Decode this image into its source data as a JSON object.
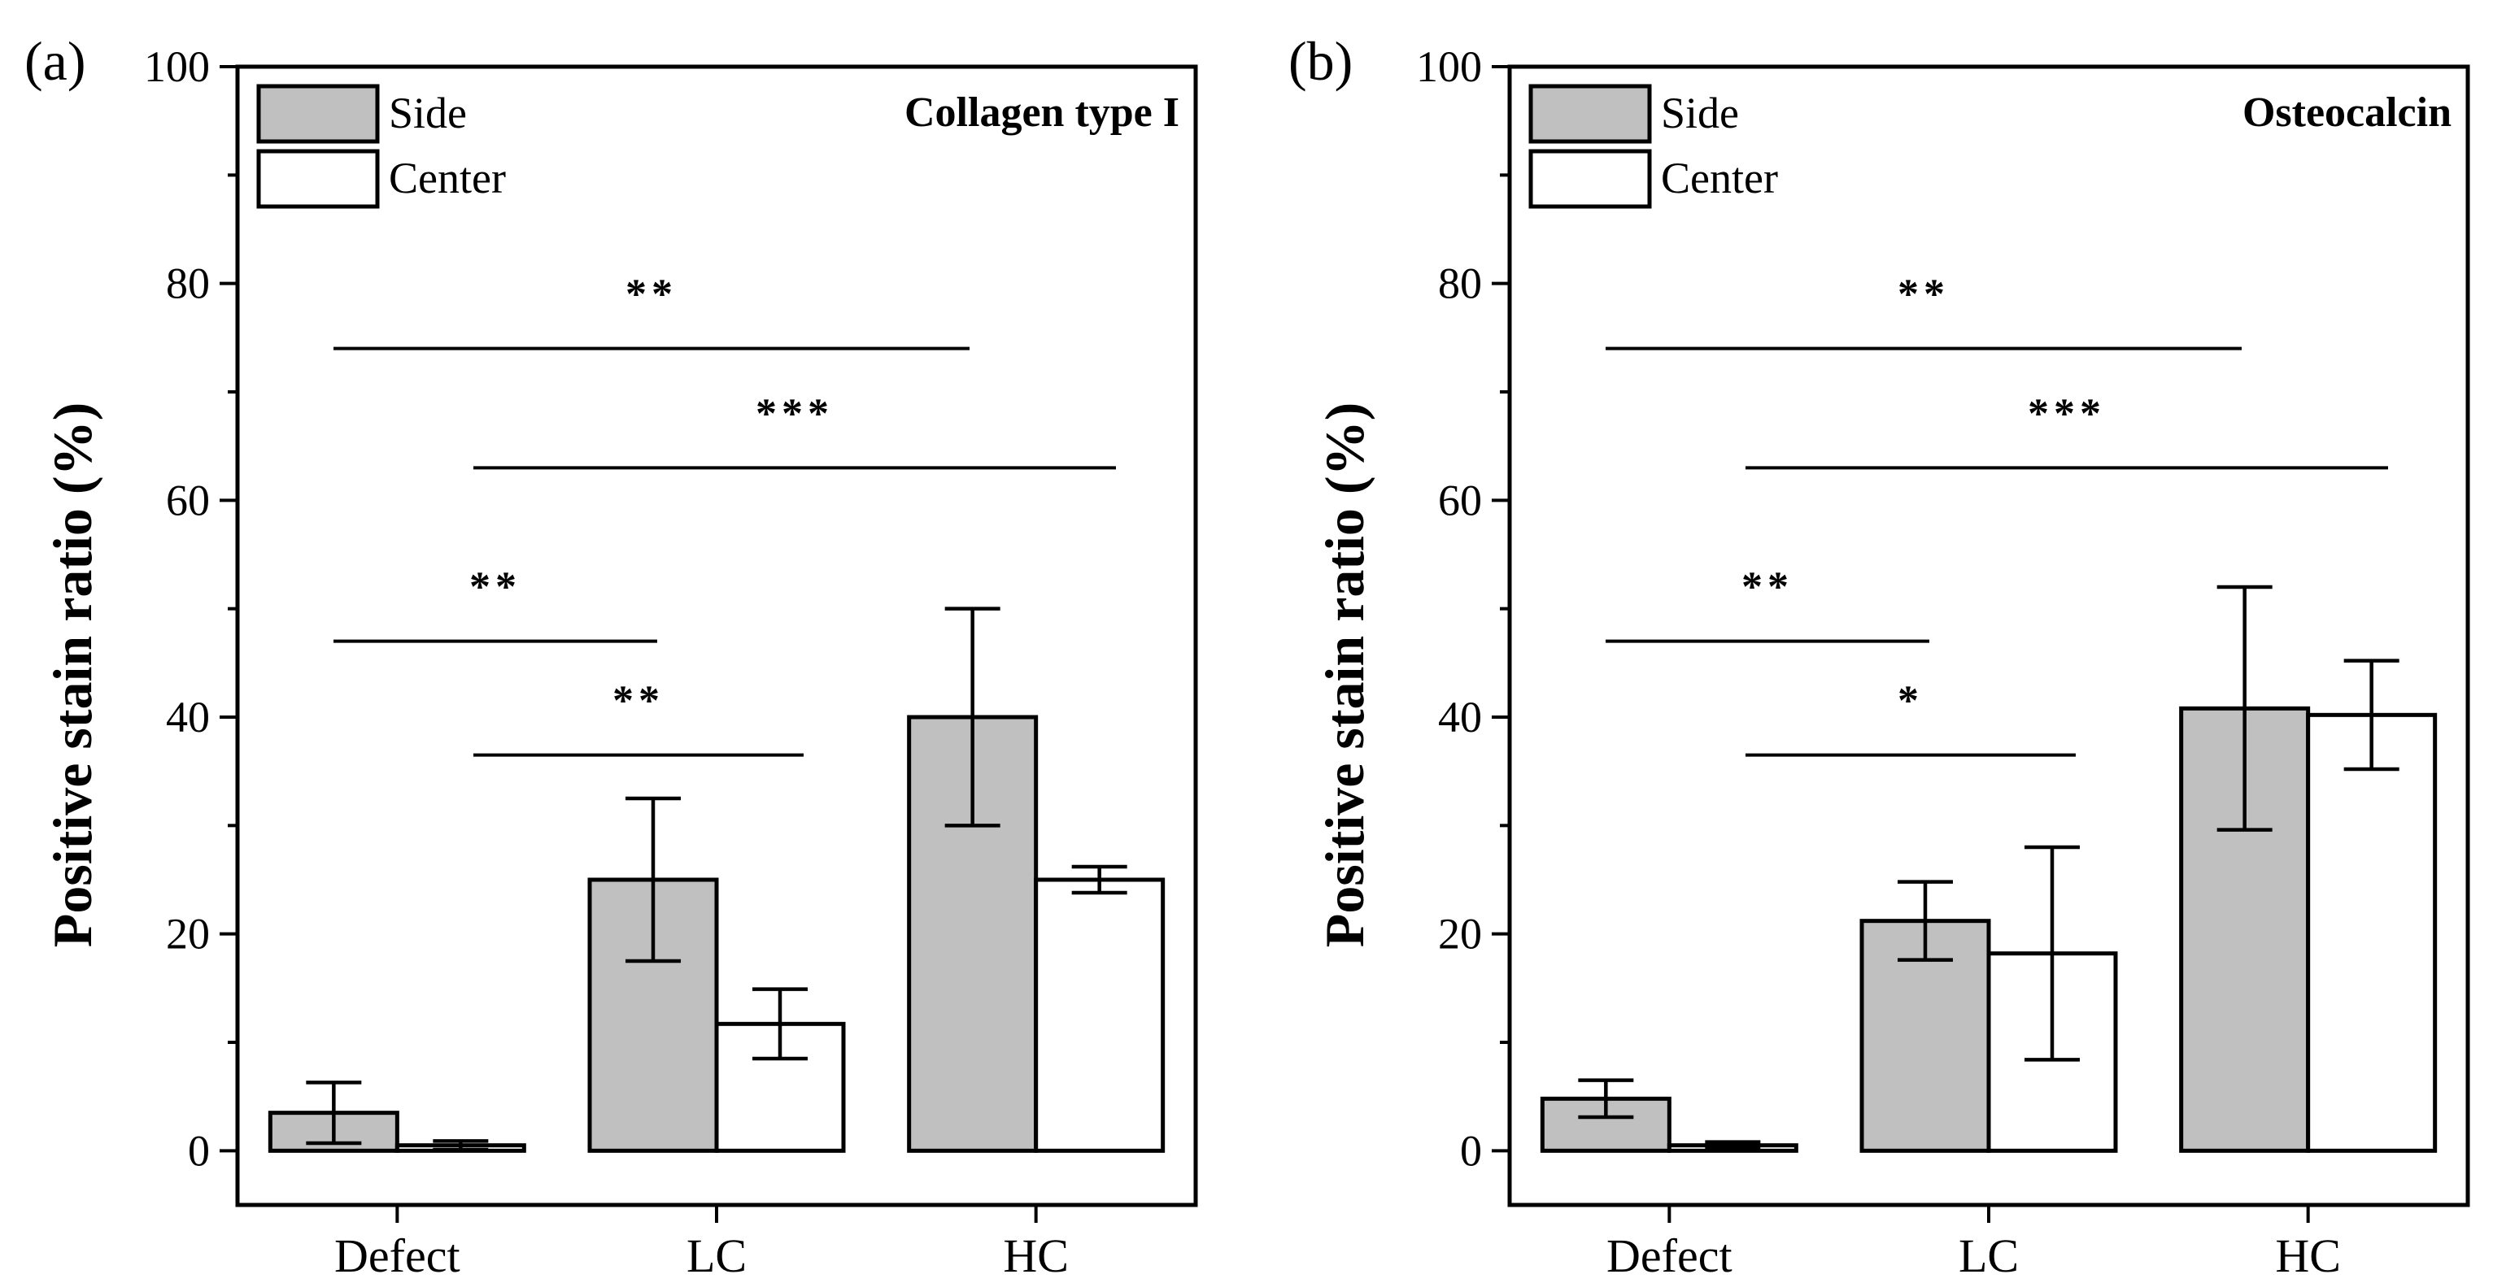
{
  "chart_data": [
    {
      "type": "bar",
      "panel_label": "(a)",
      "title": "Collagen type I",
      "xlabel": "",
      "ylabel": "Positive stain ratio (%)",
      "ylim": [
        -5,
        100
      ],
      "yticks": [
        0,
        20,
        40,
        60,
        80,
        100
      ],
      "categories": [
        "Defect",
        "LC",
        "HC"
      ],
      "legend_position": "top-left",
      "series": [
        {
          "name": "Side",
          "color": "#c0c0c0",
          "values": [
            3.5,
            25,
            40
          ],
          "errors": [
            2.8,
            7.5,
            10
          ]
        },
        {
          "name": "Center",
          "color": "#ffffff",
          "values": [
            0.5,
            11.7,
            25
          ],
          "errors": [
            0.4,
            3.2,
            1.2
          ]
        }
      ],
      "significance": [
        {
          "label": "**",
          "from": "Defect",
          "to": "HC",
          "y": 74
        },
        {
          "label": "***",
          "from": "Defect",
          "to": "HC",
          "y": 63
        },
        {
          "label": "**",
          "from": "Defect",
          "to": "LC",
          "y": 47
        },
        {
          "label": "**",
          "from": "Defect",
          "to": "LC",
          "y": 36.5
        }
      ]
    },
    {
      "type": "bar",
      "panel_label": "(b)",
      "title": "Osteocalcin",
      "xlabel": "",
      "ylabel": "Positive stain ratio (%)",
      "ylim": [
        -5,
        100
      ],
      "yticks": [
        0,
        20,
        40,
        60,
        80,
        100
      ],
      "categories": [
        "Defect",
        "LC",
        "HC"
      ],
      "legend_position": "top-left",
      "series": [
        {
          "name": "Side",
          "color": "#c0c0c0",
          "values": [
            4.8,
            21.2,
            40.8
          ],
          "errors": [
            1.7,
            3.6,
            11.2
          ]
        },
        {
          "name": "Center",
          "color": "#ffffff",
          "values": [
            0.5,
            18.2,
            40.2
          ],
          "errors": [
            0.3,
            9.8,
            5
          ]
        }
      ],
      "significance": [
        {
          "label": "**",
          "from": "Defect",
          "to": "HC",
          "y": 74
        },
        {
          "label": "***",
          "from": "Defect",
          "to": "HC",
          "y": 63
        },
        {
          "label": "**",
          "from": "Defect",
          "to": "LC",
          "y": 47
        },
        {
          "label": "*",
          "from": "Defect",
          "to": "LC",
          "y": 36.5
        }
      ]
    }
  ]
}
